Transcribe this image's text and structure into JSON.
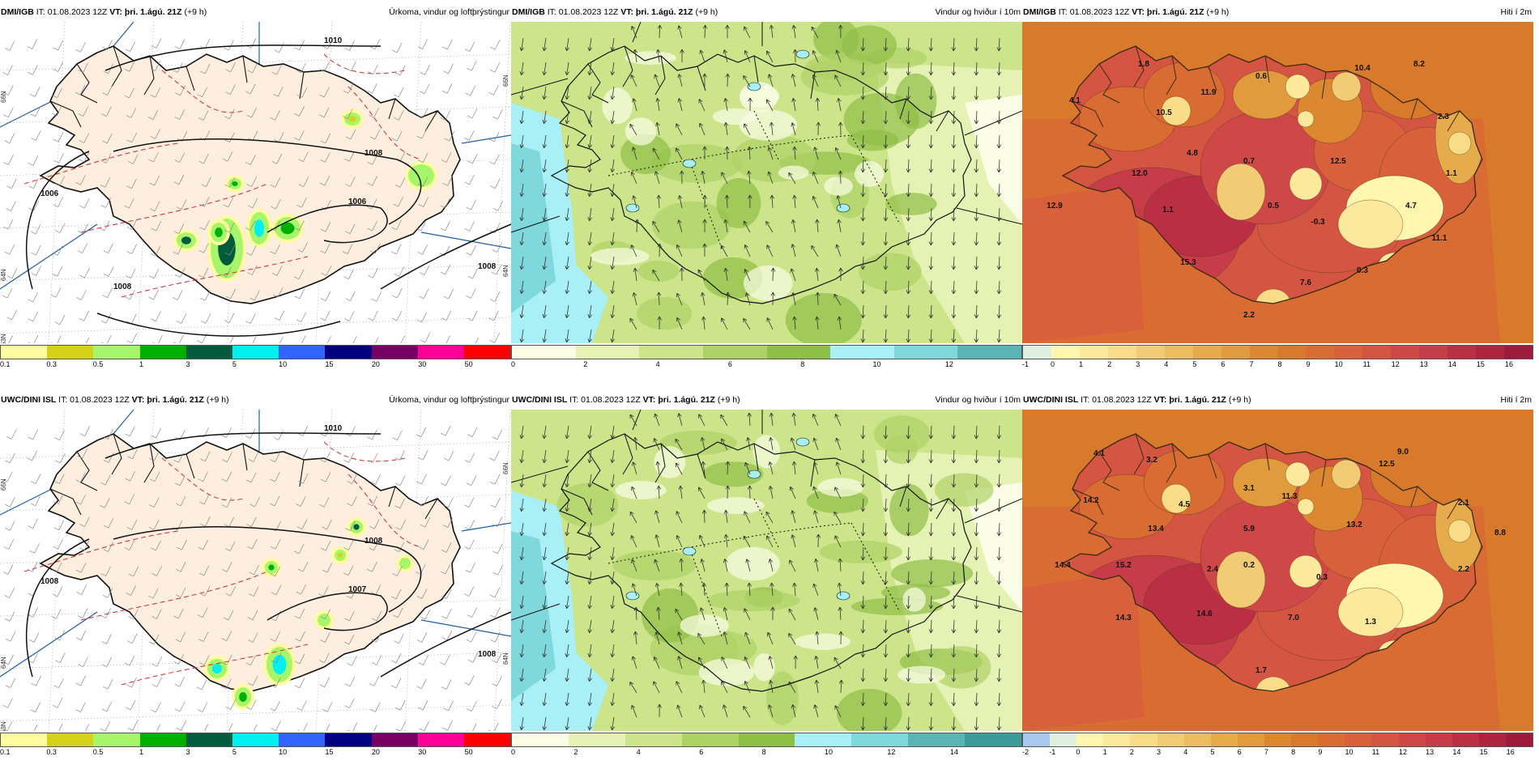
{
  "rows": [
    {
      "model": "DMI/IGB",
      "it": "IT: 01.08.2023 12Z",
      "vt": "VT: þri. 1.ágú. 21Z",
      "lead": "(+9 h)",
      "panels": [
        {
          "title": "Úrkoma, vindur og loftþrýstingur",
          "legend_labels": [
            "0.1",
            "0.3",
            "0.5",
            "1",
            "3",
            "5",
            "10",
            "15",
            "20",
            "30",
            "50"
          ],
          "legend_colors": [
            "#fffca0",
            "#d6d21a",
            "#a7f56a",
            "#00b000",
            "#005a3c",
            "#00f0f0",
            "#3264ff",
            "#000080",
            "#780064",
            "#ff0096",
            "#ff0000"
          ],
          "isobars": [
            "1010",
            "1008",
            "1006",
            "1006",
            "1008",
            "1008"
          ],
          "lat_labels": [
            "66N",
            "66N",
            "64N",
            "64N",
            "63N"
          ]
        },
        {
          "title": "Vindur og hviður í 10m",
          "legend_labels": [
            "0",
            "2",
            "4",
            "6",
            "8",
            "10",
            "12"
          ],
          "legend_colors": [
            "#fbfde6",
            "#e6f2b4",
            "#cce48a",
            "#aed266",
            "#8fbf46",
            "#a8f0f5",
            "#7fd8dc",
            "#5ab6b4"
          ]
        },
        {
          "title": "Hiti í 2m",
          "legend_labels": [
            "-1",
            "0",
            "1",
            "2",
            "3",
            "4",
            "5",
            "6",
            "7",
            "8",
            "9",
            "10",
            "11",
            "12",
            "13",
            "14",
            "15",
            "16"
          ],
          "legend_colors": [
            "#dff0e0",
            "#fff6b0",
            "#fde99c",
            "#f8dc88",
            "#f1cc74",
            "#ecbd60",
            "#e6ac4c",
            "#e19a3c",
            "#dc8830",
            "#d87a2c",
            "#d86c32",
            "#d8603a",
            "#d45542",
            "#cf4848",
            "#c63c48",
            "#bb2f44",
            "#ad2440",
            "#9e1a3a"
          ],
          "values": [
            "1.8",
            "10.4",
            "8.2",
            "4.1",
            "10.5",
            "11.9",
            "0.6",
            "2.3",
            "4.8",
            "0.7",
            "12.5",
            "12.0",
            "1.1",
            "12.9",
            "1.1",
            "0.5",
            "4.7",
            "-0.3",
            "15.3",
            "11.1",
            "0.3",
            "7.6",
            "2.2"
          ]
        }
      ]
    },
    {
      "model": "UWC/DINI ISL",
      "it": "IT: 01.08.2023 12Z",
      "vt": "VT: þri. 1.ágú. 21Z",
      "lead": "(+9 h)",
      "panels": [
        {
          "title": "Úrkoma, vindur og loftþrýstingur",
          "legend_labels": [
            "0.1",
            "0.3",
            "0.5",
            "1",
            "3",
            "5",
            "10",
            "15",
            "20",
            "30",
            "50"
          ],
          "legend_colors": [
            "#fffca0",
            "#d6d21a",
            "#a7f56a",
            "#00b000",
            "#005a3c",
            "#00f0f0",
            "#3264ff",
            "#000080",
            "#780064",
            "#ff0096",
            "#ff0000"
          ],
          "isobars": [
            "1010",
            "1008",
            "1007",
            "1008",
            "1008"
          ],
          "lat_labels": [
            "66N",
            "66N",
            "64N",
            "64N",
            "63N"
          ]
        },
        {
          "title": "Vindur og hviður í 10m",
          "legend_labels": [
            "0",
            "2",
            "4",
            "6",
            "8",
            "10",
            "12",
            "14"
          ],
          "legend_colors": [
            "#fbfde6",
            "#e6f2b4",
            "#cce48a",
            "#aed266",
            "#8fbf46",
            "#a8f0f5",
            "#7fd8dc",
            "#5ab6b4",
            "#3c9a98"
          ]
        },
        {
          "title": "Hiti í 2m",
          "legend_labels": [
            "-2",
            "-1",
            "0",
            "1",
            "2",
            "3",
            "4",
            "5",
            "6",
            "7",
            "8",
            "9",
            "10",
            "11",
            "12",
            "13",
            "14",
            "15",
            "16"
          ],
          "legend_colors": [
            "#a8c8f0",
            "#dff0e0",
            "#fff6b0",
            "#fde99c",
            "#f8dc88",
            "#f1cc74",
            "#ecbd60",
            "#e6ac4c",
            "#e19a3c",
            "#dc8830",
            "#d87a2c",
            "#d86c32",
            "#d8603a",
            "#d45542",
            "#cf4848",
            "#c63c48",
            "#bb2f44",
            "#ad2440",
            "#9e1a3a"
          ],
          "values": [
            "4.1",
            "3.2",
            "9.0",
            "12.5",
            "14.2",
            "4.5",
            "3.1",
            "11.3",
            "2.1",
            "13.4",
            "5.9",
            "13.2",
            "8.8",
            "14.4",
            "15.2",
            "2.4",
            "0.2",
            "0.3",
            "2.2",
            "14.3",
            "14.6",
            "7.0",
            "1.3",
            "1.7"
          ]
        }
      ]
    }
  ]
}
